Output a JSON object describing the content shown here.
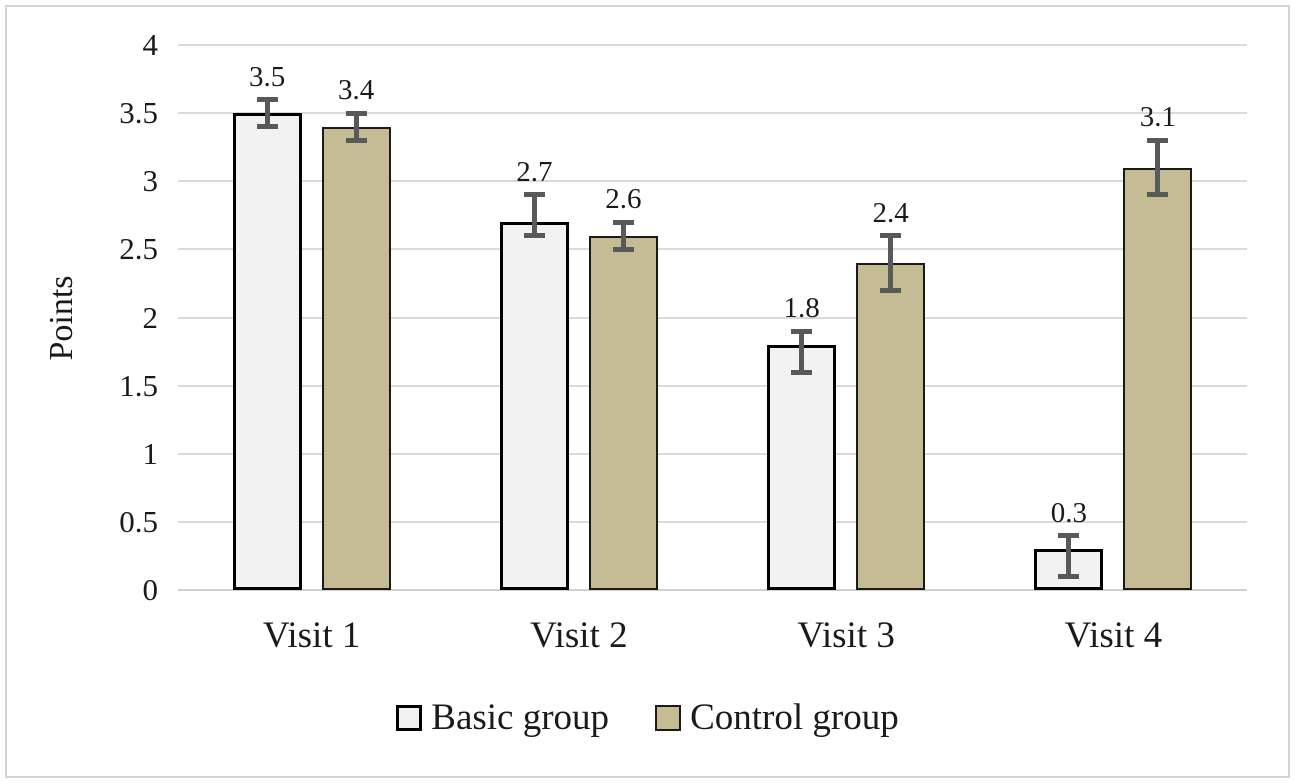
{
  "chart_data": {
    "type": "bar",
    "title": "",
    "xlabel": "",
    "ylabel": "Points",
    "categories": [
      "Visit 1",
      "Visit 2",
      "Visit 3",
      "Visit 4"
    ],
    "series": [
      {
        "name": "Basic group",
        "values": [
          3.5,
          2.7,
          1.8,
          0.3
        ],
        "value_labels": [
          "3.5",
          "2.7",
          "1.8",
          "0.3"
        ],
        "error_plus": [
          0.1,
          0.2,
          0.1,
          0.1
        ],
        "error_minus": [
          0.1,
          0.1,
          0.2,
          0.2
        ],
        "fill": "#f2f2f2",
        "border": "#000000",
        "border_width": 3
      },
      {
        "name": "Control group",
        "values": [
          3.4,
          2.6,
          2.4,
          3.1
        ],
        "value_labels": [
          "3.4",
          "2.6",
          "2.4",
          "3.1"
        ],
        "error_plus": [
          0.1,
          0.1,
          0.2,
          0.2
        ],
        "error_minus": [
          0.1,
          0.1,
          0.2,
          0.2
        ],
        "fill": "#c5bc96",
        "border": "#1a1a1a",
        "border_width": 2
      }
    ],
    "ylim": [
      0,
      4
    ],
    "yticks": [
      0,
      0.5,
      1,
      1.5,
      2,
      2.5,
      3,
      3.5,
      4
    ],
    "ytick_labels": [
      "0",
      "0.5",
      "1",
      "1.5",
      "2",
      "2.5",
      "3",
      "3.5",
      "4"
    ],
    "grid": true,
    "legend_position": "bottom",
    "colors": {
      "gridline": "#dadada",
      "axis_line": "#d0d0d0",
      "error_bar": "#595959",
      "frame_border": "#d4d4d4",
      "text": "#1a1a1a",
      "background": "#ffffff"
    }
  }
}
